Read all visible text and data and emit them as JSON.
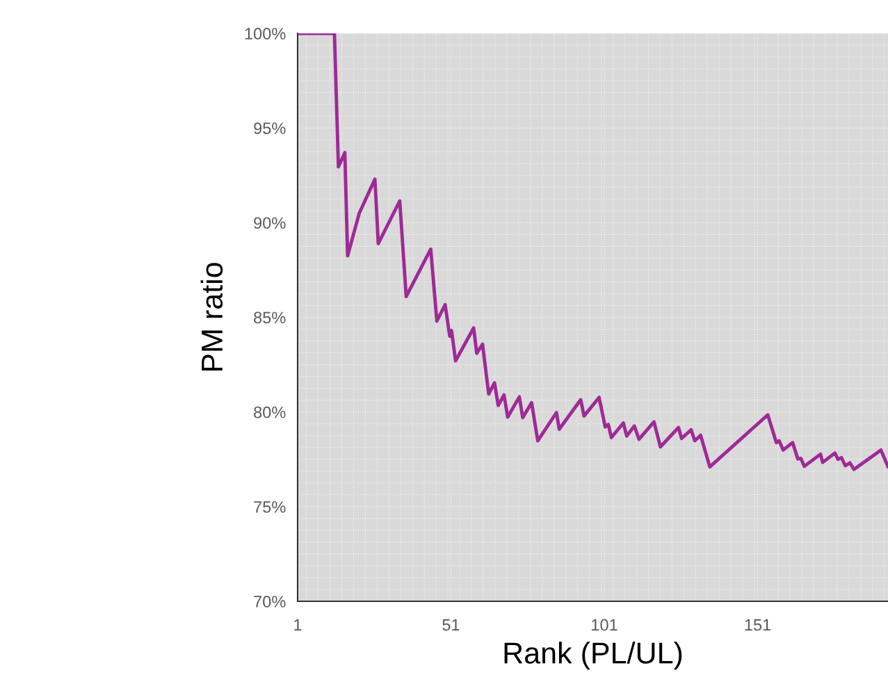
{
  "chart_data": {
    "type": "line",
    "xlabel": "Rank (PL/UL)",
    "ylabel": "PM ratio",
    "series": [
      {
        "color": "#9e2a96",
        "x": [
          1,
          13,
          14.3,
          16.4,
          17.3,
          21.1,
          26.2,
          27.3,
          34.3,
          36.4,
          44.4,
          46.4,
          49.1,
          50.6,
          51.2,
          52.5,
          58.4,
          59.4,
          61.3,
          63.3,
          65.2,
          66.4,
          68.3,
          69.5,
          73.3,
          74.4,
          77.3,
          79.3,
          85.4,
          86.3,
          93.3,
          94.4,
          99.3,
          101.3,
          102.3,
          103.3,
          107.2,
          108.3,
          110.8,
          112.3,
          117.2,
          119.3,
          125.2,
          126.2,
          129.3,
          130.5,
          132.4,
          135.4,
          154.3,
          157.1,
          158.0,
          159.3,
          162.4,
          164.1,
          165.1,
          166.2,
          171.5,
          172.2,
          176.2,
          177.2,
          178.3,
          179.6,
          181.1,
          182.4,
          191.2,
          193.5
        ],
        "values": [
          100,
          100,
          92.95,
          93.7,
          88.25,
          90.5,
          92.3,
          88.9,
          91.15,
          86.1,
          88.6,
          84.8,
          85.67,
          84.0,
          84.3,
          82.7,
          84.44,
          83.1,
          83.58,
          80.95,
          81.54,
          80.34,
          80.9,
          79.73,
          80.8,
          79.7,
          80.49,
          78.48,
          79.97,
          79.09,
          80.65,
          79.79,
          80.77,
          79.21,
          79.34,
          78.65,
          79.42,
          78.73,
          79.26,
          78.56,
          79.48,
          78.16,
          79.18,
          78.6,
          79.06,
          78.48,
          78.77,
          77.1,
          79.85,
          78.38,
          78.48,
          77.99,
          78.38,
          77.52,
          77.55,
          77.13,
          77.77,
          77.34,
          77.83,
          77.5,
          77.59,
          77.16,
          77.31,
          76.97,
          77.99,
          77.1
        ]
      }
    ],
    "xlim": [
      1,
      193.5
    ],
    "xticks": [
      1,
      51,
      101,
      151
    ],
    "ylim": [
      70,
      100
    ],
    "yticks": [
      {
        "value": 70,
        "label": "70%"
      },
      {
        "value": 75,
        "label": "75%"
      },
      {
        "value": 80,
        "label": "80%"
      },
      {
        "value": 85,
        "label": "85%"
      },
      {
        "value": 90,
        "label": "90%"
      },
      {
        "value": 95,
        "label": "95%"
      },
      {
        "value": 100,
        "label": "100%"
      }
    ],
    "grid": true,
    "line_style": "solid",
    "marker": "none"
  }
}
